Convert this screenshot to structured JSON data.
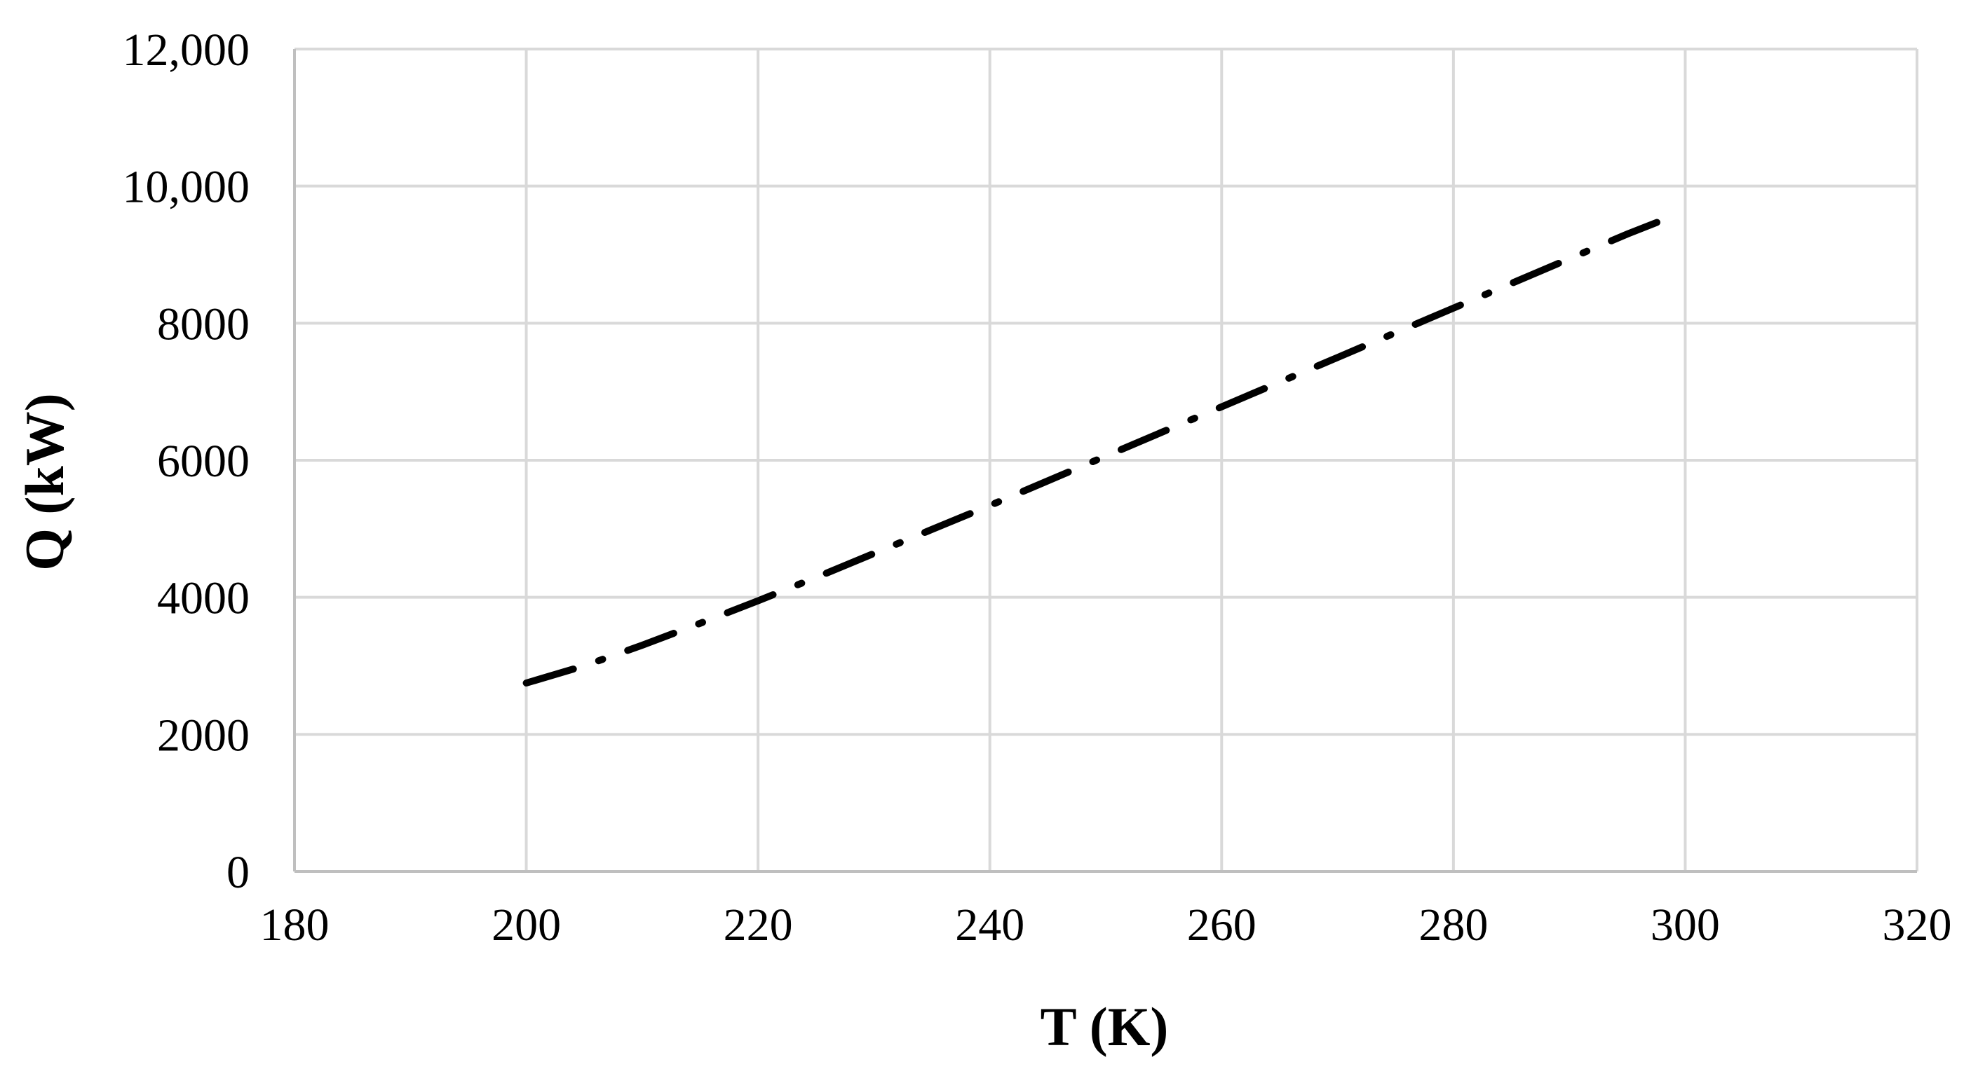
{
  "chart_data": {
    "type": "line",
    "title": "",
    "xlabel": "T (K)",
    "ylabel": "Q (kW)",
    "xlim": [
      180,
      320
    ],
    "ylim": [
      0,
      12000
    ],
    "x_ticks": [
      180,
      200,
      220,
      240,
      260,
      280,
      300,
      320
    ],
    "x_tick_labels": [
      "180",
      "200",
      "220",
      "240",
      "260",
      "280",
      "300",
      "320"
    ],
    "y_ticks": [
      0,
      2000,
      4000,
      6000,
      8000,
      10000,
      12000
    ],
    "y_tick_labels": [
      "0",
      "2000",
      "4000",
      "6000",
      "8000",
      "10,000",
      "12,000"
    ],
    "grid": true,
    "legend": "none",
    "colors": {
      "grid": "#d9d9d9",
      "axis": "#bfbfbf",
      "line": "#000000"
    },
    "line_style": "dash-dot",
    "series": [
      {
        "x": [
          200,
          205,
          210,
          215,
          220,
          225,
          230,
          235,
          240,
          245,
          250,
          255,
          260,
          265,
          270,
          275,
          280,
          285,
          290,
          295,
          298
        ],
        "values": [
          2750,
          3000,
          3300,
          3620,
          3950,
          4290,
          4640,
          4990,
          5340,
          5700,
          6060,
          6420,
          6780,
          7140,
          7500,
          7860,
          8220,
          8580,
          8940,
          9300,
          9500
        ]
      }
    ]
  }
}
